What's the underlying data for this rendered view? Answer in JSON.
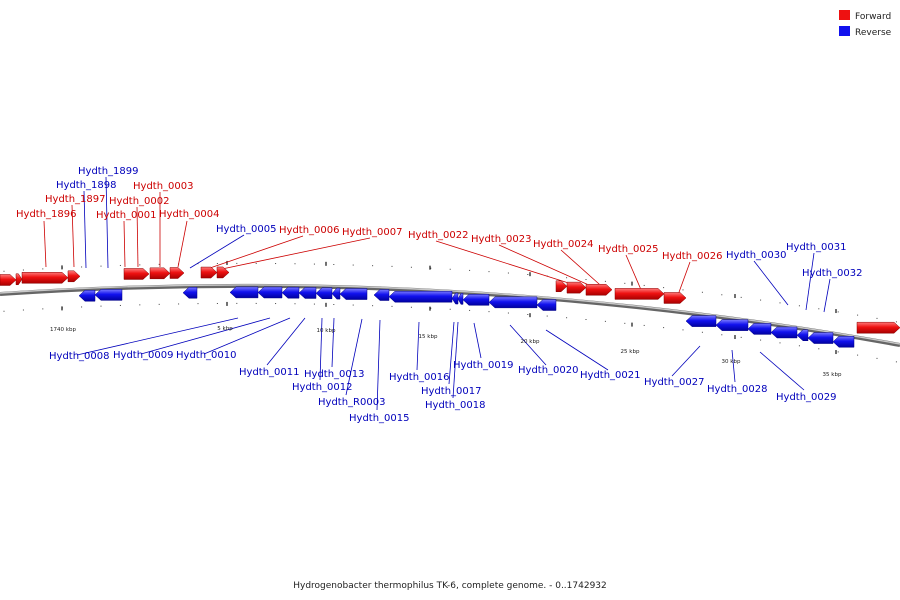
{
  "legend": {
    "forward": {
      "label": "Forward",
      "color": "#ee1111"
    },
    "reverse": {
      "label": "Reverse",
      "color": "#1111ee"
    }
  },
  "caption": "Hydrogenobacter thermophilus TK-6, complete genome. - 0..1742932",
  "scale_labels": [
    "1740 kbp",
    "5 kbp",
    "10 kbp",
    "15 kbp",
    "20 kbp",
    "25 kbp",
    "30 kbp",
    "35 kbp"
  ],
  "forward_genes": [
    "Hydth_1896",
    "Hydth_1897",
    "Hydth_0001",
    "Hydth_0002",
    "Hydth_0003",
    "Hydth_0004",
    "Hydth_0006",
    "Hydth_0007",
    "Hydth_0022",
    "Hydth_0023",
    "Hydth_0024",
    "Hydth_0025",
    "Hydth_0026"
  ],
  "reverse_genes": [
    "Hydth_1898",
    "Hydth_1899",
    "Hydth_0005",
    "Hydth_0008",
    "Hydth_0009",
    "Hydth_0010",
    "Hydth_0011",
    "Hydth_0012",
    "Hydth_0013",
    "Hydth_R0003",
    "Hydth_0015",
    "Hydth_0016",
    "Hydth_0017",
    "Hydth_0018",
    "Hydth_0019",
    "Hydth_0020",
    "Hydth_0021",
    "Hydth_0027",
    "Hydth_0028",
    "Hydth_0029",
    "Hydth_0030",
    "Hydth_0031",
    "Hydth_0032"
  ]
}
